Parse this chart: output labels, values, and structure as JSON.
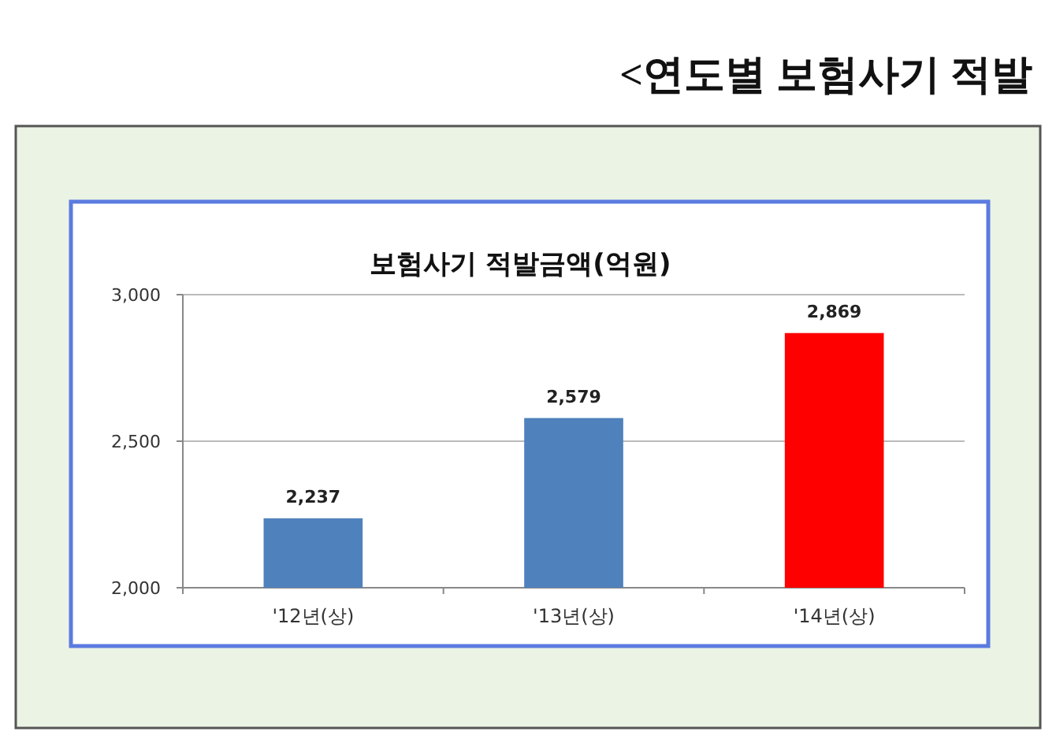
{
  "chart_data": {
    "type": "bar",
    "title": "보험사기 적발금액(억원)",
    "annotations": [
      "<연도별 보험사기 적발"
    ],
    "categories": [
      "'12년(상)",
      "'13년(상)",
      "'14년(상)"
    ],
    "values": [
      2237,
      2579,
      2869
    ],
    "colors": [
      "#4f81bd",
      "#4f81bd",
      "#ff0000"
    ],
    "value_labels": [
      "2,237",
      "2,579",
      "2,869"
    ],
    "ylim": [
      2000,
      3000
    ],
    "yticks": [
      {
        "value": 2000,
        "label": "2,000"
      },
      {
        "value": 2500,
        "label": "2,500"
      },
      {
        "value": 3000,
        "label": "3,000"
      }
    ],
    "grid": "y"
  }
}
